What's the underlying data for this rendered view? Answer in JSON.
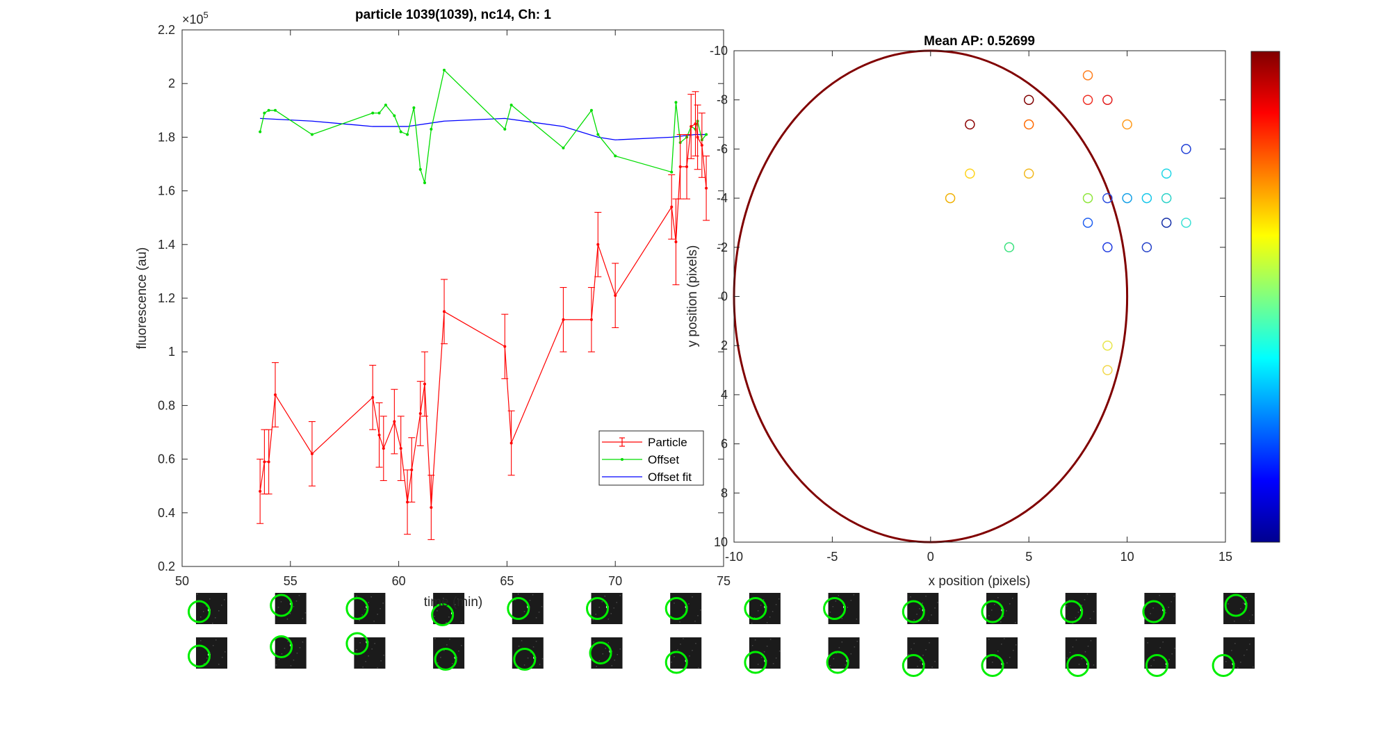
{
  "window": {
    "title": ""
  },
  "colors": {
    "particle": "#ff0000",
    "offset": "#00dd00",
    "offset_fit": "#0000ff",
    "ellipse": "#800000",
    "axes": "#262626",
    "thumbnail_ring": "#00ee00"
  },
  "chart_data": [
    {
      "type": "line",
      "title": "particle 1039(1039), nc14, Ch: 1",
      "xlabel": "time (min)",
      "ylabel": "fluorescence (au)",
      "y_exponent_label": "×10",
      "y_exponent_power": "5",
      "xlim": [
        50,
        75
      ],
      "ylim": [
        0.2,
        2.2
      ],
      "y_scale_factor": 100000,
      "x_ticks": [
        "50",
        "55",
        "60",
        "65",
        "70",
        "75"
      ],
      "x_tick_values": [
        50,
        55,
        60,
        65,
        70,
        75
      ],
      "y_ticks": [
        "0.2",
        "0.4",
        "0.6",
        "0.8",
        "1",
        "1.2",
        "1.4",
        "1.6",
        "1.8",
        "2",
        "2.2"
      ],
      "y_tick_values": [
        0.2,
        0.4,
        0.6,
        0.8,
        1.0,
        1.2,
        1.4,
        1.6,
        1.8,
        2.0,
        2.2
      ],
      "legend": {
        "position": "bottom-right",
        "entries": [
          "Particle",
          "Offset",
          "Offset fit"
        ]
      },
      "series": [
        {
          "name": "Particle",
          "style": "errorbar",
          "x": [
            53.6,
            53.8,
            54.0,
            54.3,
            56.0,
            58.8,
            59.1,
            59.3,
            59.8,
            60.1,
            60.4,
            60.6,
            61.0,
            61.2,
            61.5,
            62.1,
            64.9,
            65.2,
            67.6,
            68.9,
            69.2,
            70.0,
            72.6,
            72.8,
            73.0,
            73.3,
            73.5,
            73.7,
            73.8,
            74.0,
            74.2
          ],
          "y": [
            0.48,
            0.59,
            0.59,
            0.84,
            0.62,
            0.83,
            0.69,
            0.64,
            0.74,
            0.64,
            0.44,
            0.56,
            0.77,
            0.88,
            0.42,
            1.15,
            1.02,
            0.66,
            1.12,
            1.12,
            1.4,
            1.21,
            1.54,
            1.41,
            1.69,
            1.69,
            1.84,
            1.85,
            1.8,
            1.77,
            1.61
          ],
          "err": [
            0.12,
            0.12,
            0.12,
            0.12,
            0.12,
            0.12,
            0.12,
            0.12,
            0.12,
            0.12,
            0.12,
            0.12,
            0.12,
            0.12,
            0.12,
            0.12,
            0.12,
            0.12,
            0.12,
            0.12,
            0.12,
            0.12,
            0.12,
            0.16,
            0.12,
            0.12,
            0.12,
            0.12,
            0.12,
            0.12,
            0.12
          ]
        },
        {
          "name": "Offset",
          "style": "line-dots",
          "x": [
            53.6,
            53.8,
            54.0,
            54.3,
            56.0,
            58.8,
            59.1,
            59.4,
            59.8,
            60.1,
            60.4,
            60.7,
            61.0,
            61.2,
            61.5,
            62.1,
            64.9,
            65.2,
            67.6,
            68.9,
            69.2,
            70.0,
            72.6,
            72.8,
            73.0,
            73.3,
            73.5,
            73.7,
            73.8,
            74.0,
            74.2
          ],
          "y": [
            1.82,
            1.89,
            1.9,
            1.9,
            1.81,
            1.89,
            1.89,
            1.92,
            1.88,
            1.82,
            1.81,
            1.91,
            1.68,
            1.63,
            1.83,
            2.05,
            1.83,
            1.92,
            1.76,
            1.9,
            1.81,
            1.73,
            1.67,
            1.93,
            1.78,
            1.8,
            1.84,
            1.83,
            1.86,
            1.79,
            1.81
          ]
        },
        {
          "name": "Offset fit",
          "style": "line",
          "x": [
            53.6,
            56.0,
            58.8,
            60.4,
            62.1,
            64.9,
            67.6,
            69.2,
            70.0,
            72.6,
            73.7,
            74.2
          ],
          "y": [
            1.87,
            1.86,
            1.84,
            1.84,
            1.86,
            1.87,
            1.84,
            1.8,
            1.79,
            1.8,
            1.81,
            1.81
          ]
        }
      ]
    },
    {
      "type": "scatter",
      "title": "Mean AP: 0.52699",
      "xlabel": "x position (pixels)",
      "ylabel": "y position (pixels)",
      "xlim": [
        -10,
        15
      ],
      "ylim": [
        -10,
        10
      ],
      "y_reversed": true,
      "x_ticks": [
        "-10",
        "-5",
        "0",
        "5",
        "10",
        "15"
      ],
      "x_tick_values": [
        -10,
        -5,
        0,
        5,
        10,
        15
      ],
      "y_ticks": [
        "-10",
        "-8",
        "-6",
        "-4",
        "-2",
        "0",
        "2",
        "4",
        "6",
        "8",
        "10"
      ],
      "y_tick_values": [
        -10,
        -8,
        -6,
        -4,
        -2,
        0,
        2,
        4,
        6,
        8,
        10
      ],
      "ellipse": {
        "cx": 0,
        "cy": 0,
        "rx": 10,
        "ry": 10
      },
      "colorbar": {
        "colormap": "jet",
        "ticks": []
      },
      "points": [
        {
          "x": 8,
          "y": -9,
          "color": "#ff7f1e"
        },
        {
          "x": 5,
          "y": -8,
          "color": "#800000"
        },
        {
          "x": 8,
          "y": -8,
          "color": "#ef2f24"
        },
        {
          "x": 9,
          "y": -8,
          "color": "#e21b1b"
        },
        {
          "x": 2,
          "y": -7,
          "color": "#8b0000"
        },
        {
          "x": 5,
          "y": -7,
          "color": "#ff6a00"
        },
        {
          "x": 10,
          "y": -7,
          "color": "#ff9a1a"
        },
        {
          "x": 13,
          "y": -6,
          "color": "#1f3fd6"
        },
        {
          "x": 2,
          "y": -5,
          "color": "#ffd31a"
        },
        {
          "x": 5,
          "y": -5,
          "color": "#f2b81d"
        },
        {
          "x": 12,
          "y": -5,
          "color": "#1fd6e6"
        },
        {
          "x": 1,
          "y": -4,
          "color": "#f0b000"
        },
        {
          "x": 8,
          "y": -4,
          "color": "#8ee63a"
        },
        {
          "x": 9,
          "y": -4,
          "color": "#2a4ddf"
        },
        {
          "x": 10,
          "y": -4,
          "color": "#129fe6"
        },
        {
          "x": 11,
          "y": -4,
          "color": "#14c6e9"
        },
        {
          "x": 12,
          "y": -4,
          "color": "#2ad1c8"
        },
        {
          "x": 8,
          "y": -3,
          "color": "#1f5ff0"
        },
        {
          "x": 12,
          "y": -3,
          "color": "#142fa8"
        },
        {
          "x": 13,
          "y": -3,
          "color": "#3ae0d5"
        },
        {
          "x": 4,
          "y": -2,
          "color": "#3ce27f"
        },
        {
          "x": 9,
          "y": -2,
          "color": "#1f3be0"
        },
        {
          "x": 11,
          "y": -2,
          "color": "#2340c8"
        },
        {
          "x": 9,
          "y": 2,
          "color": "#e8e64a"
        },
        {
          "x": 9,
          "y": 3,
          "color": "#f2d84a"
        }
      ]
    }
  ],
  "thumbnails": {
    "rows": 2,
    "columns": 14,
    "row1_offsets": [
      [
        -0.4,
        0.1
      ],
      [
        -0.3,
        -0.1
      ],
      [
        -0.4,
        0.0
      ],
      [
        -0.2,
        0.2
      ],
      [
        -0.3,
        0.0
      ],
      [
        -0.3,
        0.0
      ],
      [
        -0.3,
        0.0
      ],
      [
        -0.3,
        0.0
      ],
      [
        -0.3,
        0.0
      ],
      [
        -0.3,
        0.1
      ],
      [
        -0.3,
        0.1
      ],
      [
        -0.3,
        0.1
      ],
      [
        -0.2,
        0.1
      ],
      [
        -0.1,
        -0.1
      ]
    ],
    "row2_offsets": [
      [
        -0.4,
        0.1
      ],
      [
        -0.3,
        -0.2
      ],
      [
        -0.4,
        -0.3
      ],
      [
        -0.1,
        0.2
      ],
      [
        -0.1,
        0.2
      ],
      [
        -0.2,
        0.0
      ],
      [
        -0.3,
        0.3
      ],
      [
        -0.3,
        0.3
      ],
      [
        -0.2,
        0.3
      ],
      [
        -0.3,
        0.4
      ],
      [
        -0.3,
        0.4
      ],
      [
        -0.1,
        0.4
      ],
      [
        -0.1,
        0.4
      ],
      [
        -0.5,
        0.4
      ]
    ]
  }
}
